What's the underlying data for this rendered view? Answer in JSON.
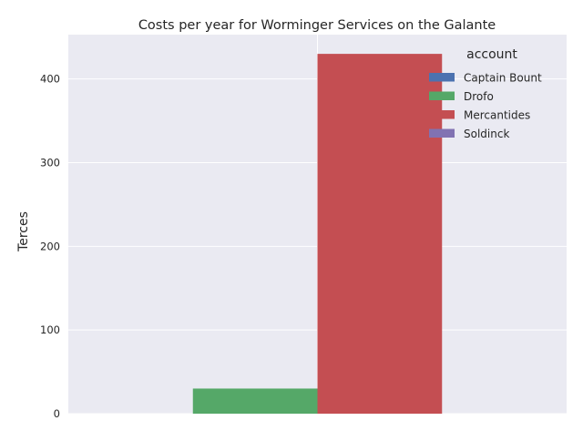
{
  "chart_data": {
    "type": "bar",
    "title": "Costs per year for Worminger Services on the Galante",
    "xlabel": "",
    "ylabel": "Terces",
    "categories": [
      ""
    ],
    "series": [
      {
        "name": "Captain Bount",
        "values": [
          0
        ],
        "color": "#4c72b0"
      },
      {
        "name": "Drofo",
        "values": [
          30
        ],
        "color": "#55a868"
      },
      {
        "name": "Mercantides",
        "values": [
          430
        ],
        "color": "#c44e52"
      },
      {
        "name": "Soldinck",
        "values": [
          0
        ],
        "color": "#8172b2"
      }
    ],
    "ylim": [
      0,
      453
    ],
    "yticks": [
      0,
      100,
      200,
      300,
      400
    ],
    "ytick_labels": [
      "0",
      "100",
      "200",
      "300",
      "400"
    ],
    "grid": true,
    "legend": {
      "title": "account",
      "placement": "top-right"
    },
    "background_color": "#eaeaf2",
    "grid_color": "#ffffff"
  }
}
